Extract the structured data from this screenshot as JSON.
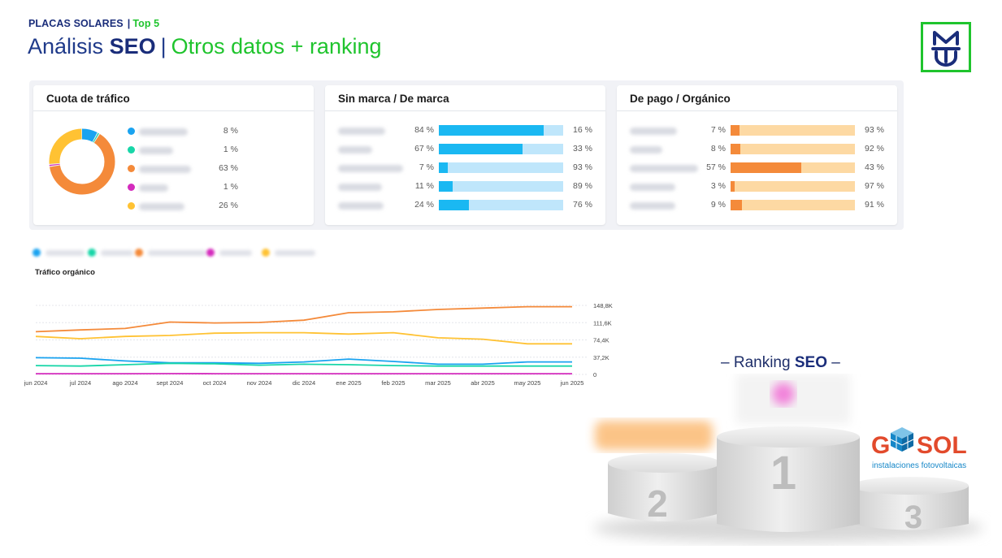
{
  "header": {
    "eyebrow_brand": "PLACAS SOLARES",
    "eyebrow_sep": "|",
    "eyebrow_top": "Top 5",
    "title_prefix": "Análisis",
    "title_bold": "SEO",
    "title_sep": "|",
    "title_suffix": "Otros datos + ranking"
  },
  "logo": {
    "icon": "mt-logo-icon",
    "color": "#1fc42d"
  },
  "cards": {
    "traffic_share": {
      "title": "Cuota de tráfico",
      "rows": [
        {
          "color": "#1aa3f0",
          "value": 8,
          "label": "8 %"
        },
        {
          "color": "#18d6a8",
          "value": 1,
          "label": "1 %"
        },
        {
          "color": "#f48a3a",
          "value": 63,
          "label": "63 %"
        },
        {
          "color": "#d42bbd",
          "value": 1,
          "label": "1 %"
        },
        {
          "color": "#ffc233",
          "value": 26,
          "label": "26 %"
        }
      ]
    },
    "brand": {
      "title": "Sin marca / De marca",
      "rows": [
        {
          "left": "84 %",
          "right": "16 %",
          "value": 0.84
        },
        {
          "left": "67 %",
          "right": "33 %",
          "value": 0.67
        },
        {
          "left": "7 %",
          "right": "93 %",
          "value": 0.07
        },
        {
          "left": "11 %",
          "right": "89 %",
          "value": 0.11
        },
        {
          "left": "24 %",
          "right": "76 %",
          "value": 0.24
        }
      ],
      "fg": "#1ab8f2",
      "bg": "#bfe6fb"
    },
    "paid": {
      "title": "De pago / Orgánico",
      "rows": [
        {
          "left": "7 %",
          "right": "93 %",
          "value": 0.07
        },
        {
          "left": "8 %",
          "right": "92 %",
          "value": 0.08
        },
        {
          "left": "57 %",
          "right": "43 %",
          "value": 0.57
        },
        {
          "left": "3 %",
          "right": "97 %",
          "value": 0.03
        },
        {
          "left": "9 %",
          "right": "91 %",
          "value": 0.09
        }
      ],
      "fg": "#f48a3a",
      "bg": "#fdd9a3"
    }
  },
  "chart_data": {
    "type": "line",
    "title": "Tráfico orgánico",
    "x": [
      "jun 2024",
      "jul 2024",
      "ago 2024",
      "sept 2024",
      "oct 2024",
      "nov 2024",
      "dic 2024",
      "ene 2025",
      "feb 2025",
      "mar 2025",
      "abr 2025",
      "may 2025",
      "jun 2025"
    ],
    "y_ticks": [
      "0",
      "37,2K",
      "74,4K",
      "111,6K",
      "148,8K"
    ],
    "ylim": [
      0,
      148800
    ],
    "series": [
      {
        "color": "#f48a3a",
        "values": [
          92000,
          96000,
          99000,
          113000,
          111000,
          112000,
          117000,
          133000,
          135000,
          140000,
          143000,
          146000,
          146000
        ]
      },
      {
        "color": "#ffc233",
        "values": [
          82000,
          77000,
          82000,
          84000,
          89000,
          90000,
          90000,
          87000,
          90000,
          79000,
          76000,
          66000,
          66000
        ]
      },
      {
        "color": "#1aa3f0",
        "values": [
          36000,
          35000,
          29000,
          25000,
          25000,
          24000,
          27000,
          33000,
          28000,
          22000,
          22000,
          27000,
          27000
        ]
      },
      {
        "color": "#18d6a8",
        "values": [
          19000,
          18000,
          21000,
          24000,
          23000,
          20000,
          22000,
          21000,
          19000,
          18000,
          18000,
          18000,
          18000
        ]
      },
      {
        "color": "#d42bbd",
        "values": [
          1500,
          1600,
          1500,
          1700,
          1600,
          1500,
          1600,
          1600,
          1500,
          1500,
          1600,
          1500,
          1500
        ]
      }
    ],
    "grid": true,
    "legend": "top-left"
  },
  "legend_colors": [
    "#1aa3f0",
    "#18d6a8",
    "#f48a3a",
    "#d42bbd",
    "#ffc233"
  ],
  "ranking": {
    "title_prefix": "– Ranking",
    "title_bold": "SEO",
    "title_suffix": "–",
    "podium_numbers": [
      "1",
      "2",
      "3"
    ],
    "third_place_logo": {
      "name": "GESOL",
      "name_g": "G",
      "name_sol": "SOL",
      "tagline": "instalaciones fotovoltaicas",
      "red": "#e24a2c",
      "blue": "#1587c8"
    }
  }
}
